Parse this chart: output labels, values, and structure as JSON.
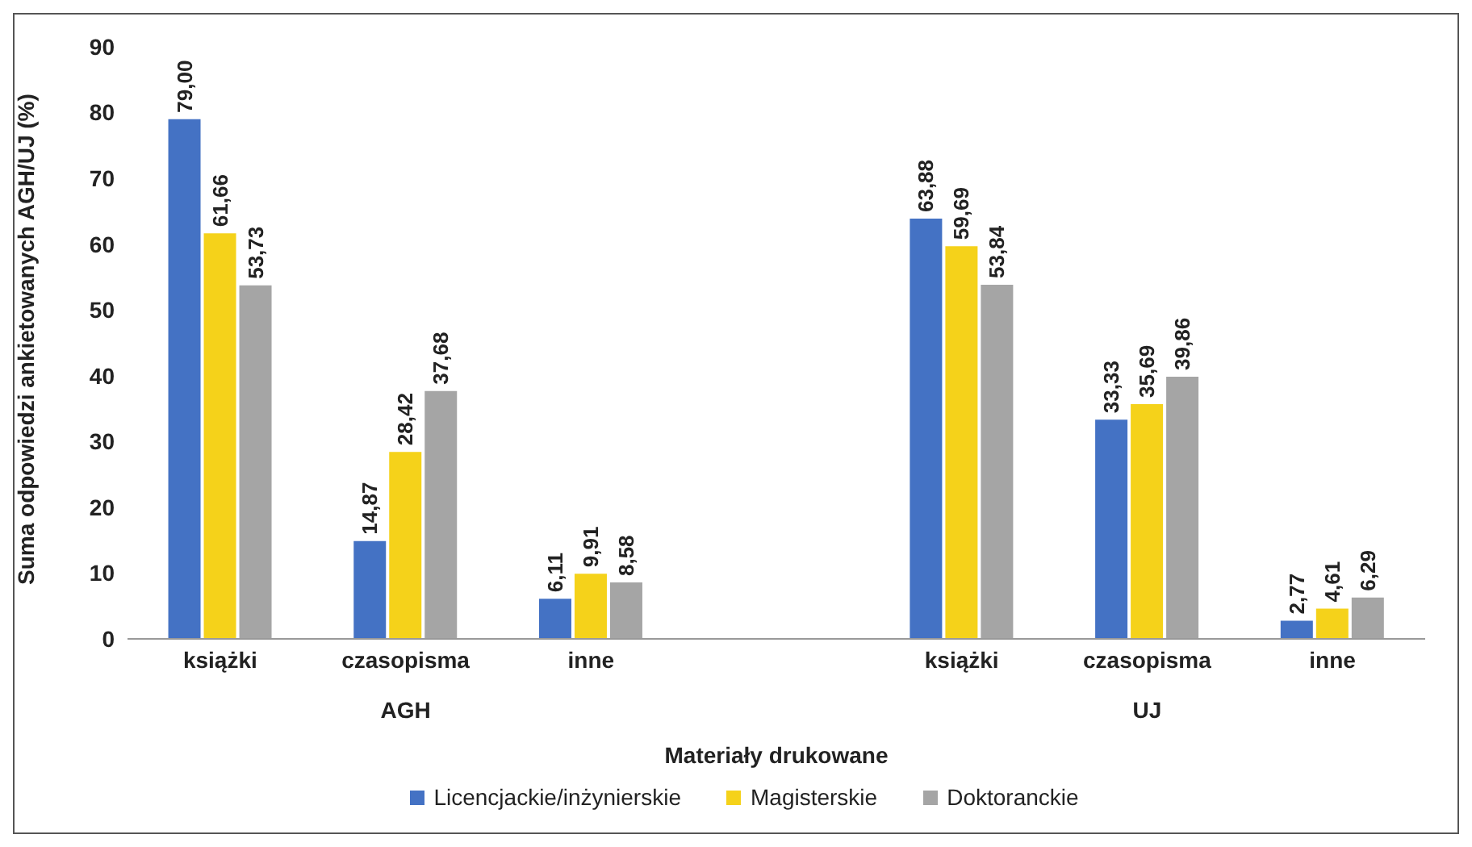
{
  "chart_data": {
    "type": "bar",
    "ylabel": "Suma odpowiedzi ankietowanych  AGH/UJ (%)",
    "xlabel": "Materiały drukowane",
    "categories": [
      "książki",
      "czasopisma",
      "inne",
      null,
      "książki",
      "czasopisma",
      "inne"
    ],
    "annotations": [
      "AGH",
      "UJ"
    ],
    "series": [
      {
        "name": "Licencjackie/inżynierskie",
        "color": "#4472c4",
        "values": [
          79.0,
          14.87,
          6.11,
          null,
          63.88,
          33.33,
          2.77
        ],
        "value_labels": [
          "79,00",
          "14,87",
          "6,11",
          null,
          "63,88",
          "33,33",
          "2,77"
        ]
      },
      {
        "name": "Magisterskie",
        "color": "#f5d21a",
        "values": [
          61.66,
          28.42,
          9.91,
          null,
          59.69,
          35.69,
          4.61
        ],
        "value_labels": [
          "61,66",
          "28,42",
          "9,91",
          null,
          "59,69",
          "35,69",
          "4,61"
        ]
      },
      {
        "name": "Doktoranckie",
        "color": "#a5a5a5",
        "values": [
          53.73,
          37.68,
          8.58,
          null,
          53.84,
          39.86,
          6.29
        ],
        "value_labels": [
          "53,73",
          "37,68",
          "8,58",
          null,
          "53,84",
          "39,86",
          "6,29"
        ]
      }
    ],
    "ylim": [
      0,
      90
    ],
    "yticks": [
      0,
      10,
      20,
      30,
      40,
      50,
      60,
      70,
      80,
      90
    ],
    "grid": false,
    "legend": "bottom"
  }
}
